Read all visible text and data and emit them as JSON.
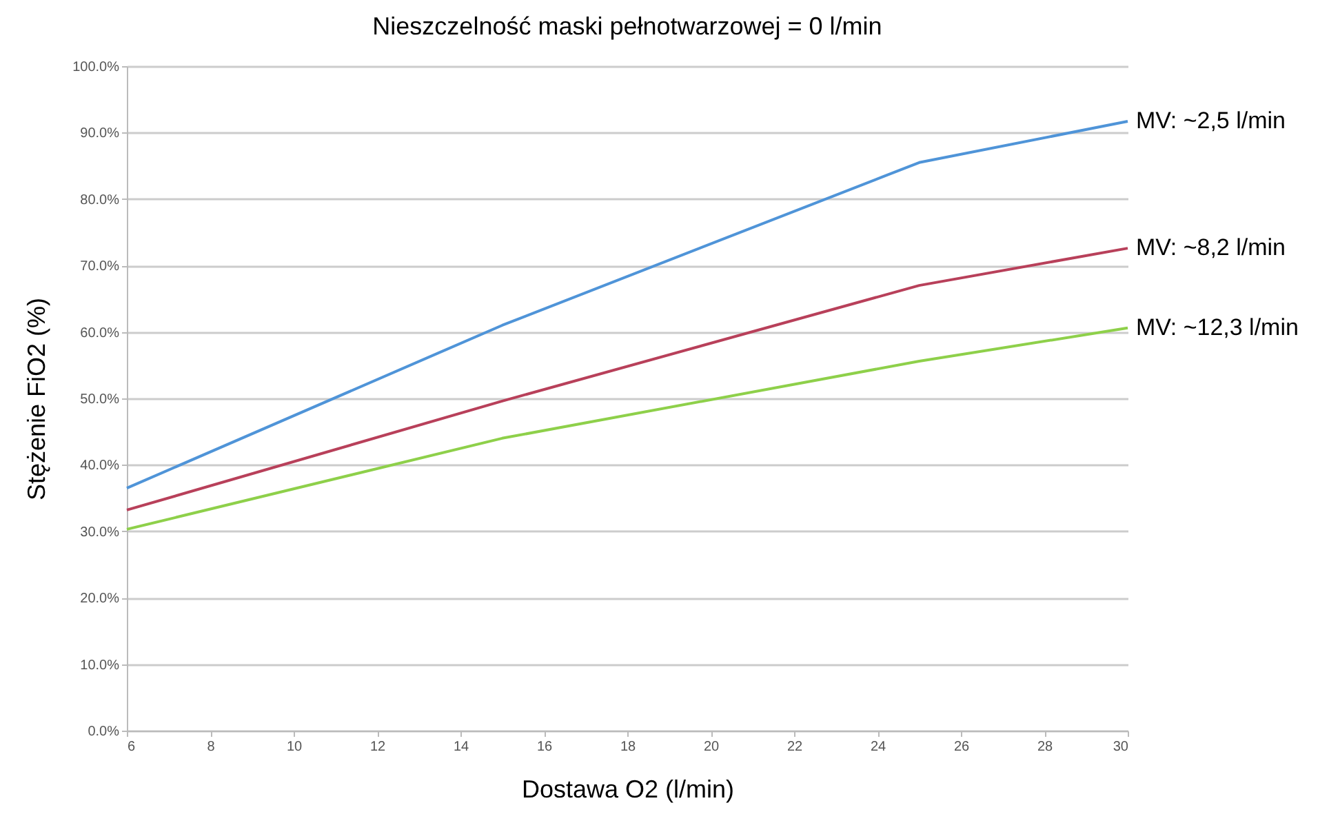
{
  "chart_data": {
    "type": "line",
    "title": "Nieszczelność maski pełnotwarzowej = 0 l/min",
    "xlabel": "Dostawa O2 (l/min)",
    "ylabel": "Stężenie FiO2  (%)",
    "x": [
      6,
      15,
      25,
      30
    ],
    "series": [
      {
        "name": "MV: ~2,5 l/min",
        "color": "#4f94d8",
        "values": [
          36.5,
          61,
          85.5,
          91.7
        ]
      },
      {
        "name": "MV: ~8,2 l/min",
        "color": "#b8405a",
        "values": [
          33.2,
          49.6,
          67,
          72.6
        ]
      },
      {
        "name": "MV: ~12,3 l/min",
        "color": "#8ed04a",
        "values": [
          30.3,
          44,
          55.6,
          60.6
        ]
      }
    ],
    "xlim": [
      6,
      30
    ],
    "xticks": [
      6,
      8,
      10,
      12,
      14,
      16,
      18,
      20,
      22,
      24,
      26,
      28,
      30
    ],
    "ylim": [
      0,
      100
    ],
    "yticks": [
      {
        "value": 0,
        "label": "0.0%"
      },
      {
        "value": 10,
        "label": "10.0%"
      },
      {
        "value": 20,
        "label": "20.0%"
      },
      {
        "value": 30,
        "label": "30.0%"
      },
      {
        "value": 40,
        "label": "40.0%"
      },
      {
        "value": 50,
        "label": "50.0%"
      },
      {
        "value": 60,
        "label": "60.0%"
      },
      {
        "value": 70,
        "label": "70.0%"
      },
      {
        "value": 80,
        "label": "80.0%"
      },
      {
        "value": 90,
        "label": "90.0%"
      },
      {
        "value": 100,
        "label": "100.0%"
      }
    ],
    "grid": "y",
    "legend": false,
    "marker": "none",
    "line_style": "solid"
  }
}
